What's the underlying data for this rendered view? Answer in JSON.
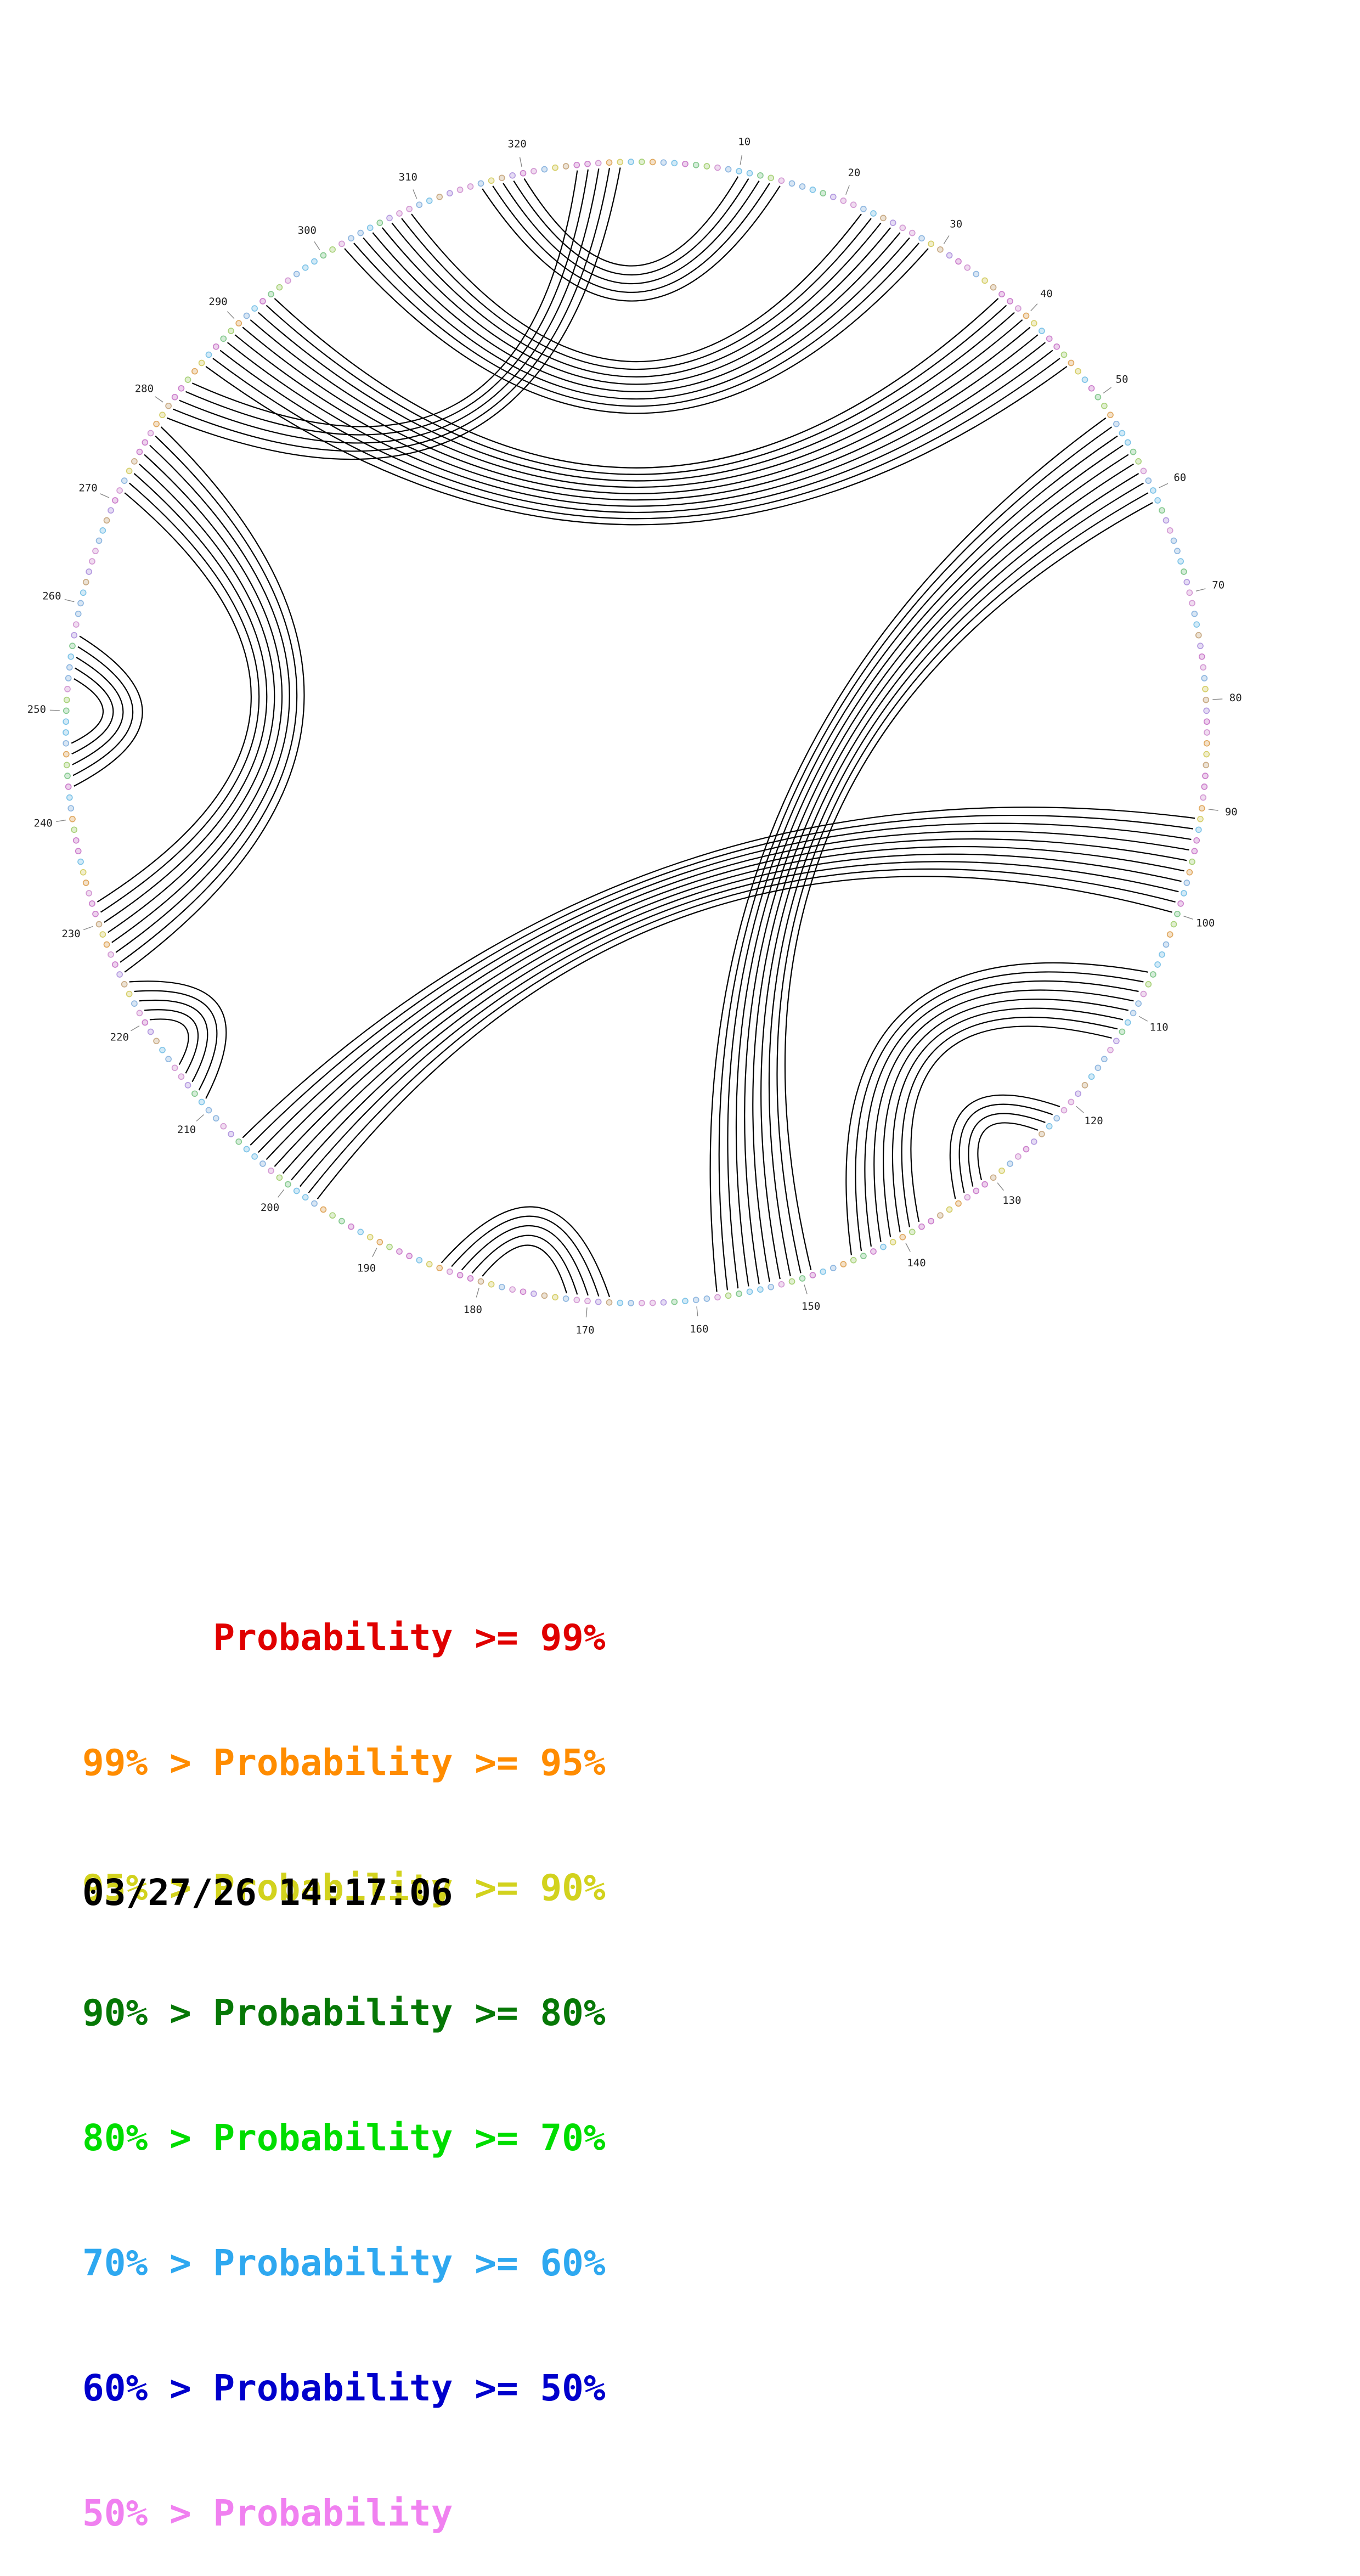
{
  "chart_data": {
    "type": "chord",
    "description": "RNA base-pairing probability circle plot; positions around a circle with arcs connecting predicted paired bases",
    "n_positions": 330,
    "tick_interval": 10,
    "arc_color": "#000000",
    "dot_palette": [
      "#cc7fcc",
      "#d49ad4",
      "#8fb7e0",
      "#7fc4e8",
      "#85c98f",
      "#a9d27a",
      "#e0a860",
      "#d6cf6a",
      "#c9ab85",
      "#b49ae0",
      "#d49ad4",
      "#8fb7e0",
      "#7fc4e8",
      "#cc7fcc"
    ],
    "helices": [
      {
        "a": 316,
        "b": 14,
        "n": 5
      },
      {
        "a": 302,
        "b": 29,
        "n": 8
      },
      {
        "a": 285,
        "b": 46,
        "n": 10
      },
      {
        "a": 279,
        "b": 329,
        "n": 5
      },
      {
        "a": 225,
        "b": 278,
        "n": 8
      },
      {
        "a": 243,
        "b": 257,
        "n": 5
      },
      {
        "a": 211,
        "b": 224,
        "n": 5
      },
      {
        "a": 91,
        "b": 206,
        "n": 10
      },
      {
        "a": 52,
        "b": 158,
        "n": 10
      },
      {
        "a": 106,
        "b": 145,
        "n": 8
      },
      {
        "a": 121,
        "b": 134,
        "n": 4
      },
      {
        "a": 168,
        "b": 184,
        "n": 5
      }
    ],
    "legend": [
      {
        "label": "      Probability >= 99%",
        "color": "#e00000"
      },
      {
        "label": "99% > Probability >= 95%",
        "color": "#ff8c00"
      },
      {
        "label": "95% > Probability >= 90%",
        "color": "#d2d21e"
      },
      {
        "label": "90% > Probability >= 80%",
        "color": "#067806"
      },
      {
        "label": "80% > Probability >= 70%",
        "color": "#00dd00"
      },
      {
        "label": "70% > Probability >= 60%",
        "color": "#2ea8f0"
      },
      {
        "label": "60% > Probability >= 50%",
        "color": "#0000cc"
      },
      {
        "label": "50% > Probability",
        "color": "#f080f0"
      }
    ],
    "timestamp": "03/27/26 14:17:06"
  }
}
